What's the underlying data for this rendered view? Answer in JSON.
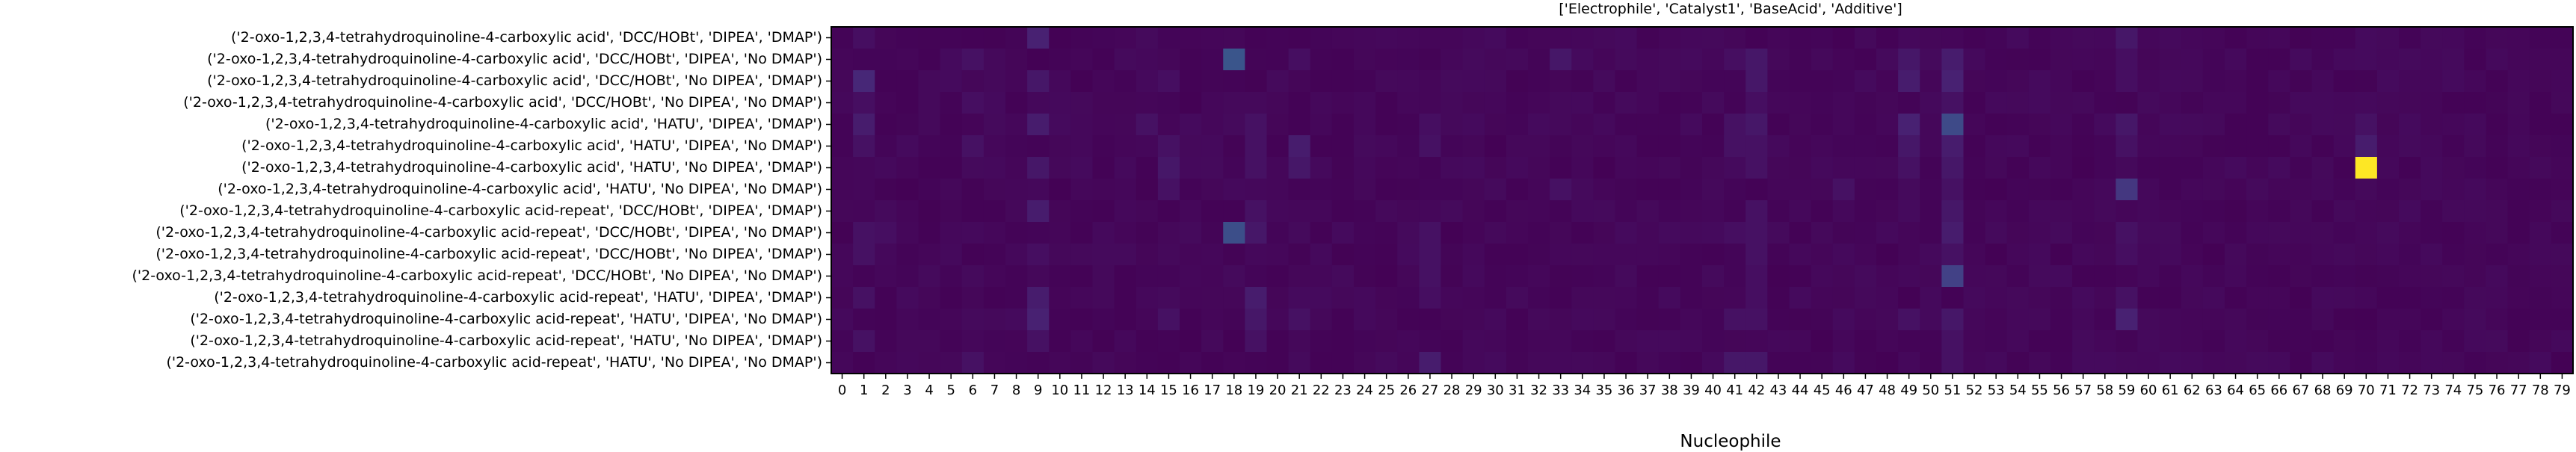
{
  "chart_data": {
    "type": "heatmap",
    "title": "['Electrophile', 'Catalyst1', 'BaseAcid', 'Additive']",
    "xlabel": "Nucleophile",
    "ylabel": "",
    "x_ticks": [
      "0",
      "1",
      "2",
      "3",
      "4",
      "5",
      "6",
      "7",
      "8",
      "9",
      "10",
      "11",
      "12",
      "13",
      "14",
      "15",
      "16",
      "17",
      "18",
      "19",
      "20",
      "21",
      "22",
      "23",
      "24",
      "25",
      "26",
      "27",
      "28",
      "29",
      "30",
      "31",
      "32",
      "33",
      "34",
      "35",
      "36",
      "37",
      "38",
      "39",
      "40",
      "41",
      "42",
      "43",
      "44",
      "45",
      "46",
      "47",
      "48",
      "49",
      "50",
      "51",
      "52",
      "53",
      "54",
      "55",
      "56",
      "57",
      "58",
      "59",
      "60",
      "61",
      "62",
      "63",
      "64",
      "65",
      "66",
      "67",
      "68",
      "69",
      "70",
      "71",
      "72",
      "73",
      "74",
      "75",
      "76",
      "77",
      "78",
      "79"
    ],
    "y_labels": [
      "('2-oxo-1,2,3,4-tetrahydroquinoline-4-carboxylic acid', 'DCC/HOBt', 'DIPEA', 'DMAP')",
      "('2-oxo-1,2,3,4-tetrahydroquinoline-4-carboxylic acid', 'DCC/HOBt', 'DIPEA', 'No DMAP')",
      "('2-oxo-1,2,3,4-tetrahydroquinoline-4-carboxylic acid', 'DCC/HOBt', 'No DIPEA', 'DMAP')",
      "('2-oxo-1,2,3,4-tetrahydroquinoline-4-carboxylic acid', 'DCC/HOBt', 'No DIPEA', 'No DMAP')",
      "('2-oxo-1,2,3,4-tetrahydroquinoline-4-carboxylic acid', 'HATU', 'DIPEA', 'DMAP')",
      "('2-oxo-1,2,3,4-tetrahydroquinoline-4-carboxylic acid', 'HATU', 'DIPEA', 'No DMAP')",
      "('2-oxo-1,2,3,4-tetrahydroquinoline-4-carboxylic acid', 'HATU', 'No DIPEA', 'DMAP')",
      "('2-oxo-1,2,3,4-tetrahydroquinoline-4-carboxylic acid', 'HATU', 'No DIPEA', 'No DMAP')",
      "('2-oxo-1,2,3,4-tetrahydroquinoline-4-carboxylic acid-repeat', 'DCC/HOBt', 'DIPEA', 'DMAP')",
      "('2-oxo-1,2,3,4-tetrahydroquinoline-4-carboxylic acid-repeat', 'DCC/HOBt', 'DIPEA', 'No DMAP')",
      "('2-oxo-1,2,3,4-tetrahydroquinoline-4-carboxylic acid-repeat', 'DCC/HOBt', 'No DIPEA', 'DMAP')",
      "('2-oxo-1,2,3,4-tetrahydroquinoline-4-carboxylic acid-repeat', 'DCC/HOBt', 'No DIPEA', 'No DMAP')",
      "('2-oxo-1,2,3,4-tetrahydroquinoline-4-carboxylic acid-repeat', 'HATU', 'DIPEA', 'DMAP')",
      "('2-oxo-1,2,3,4-tetrahydroquinoline-4-carboxylic acid-repeat', 'HATU', 'DIPEA', 'No DMAP')",
      "('2-oxo-1,2,3,4-tetrahydroquinoline-4-carboxylic acid-repeat', 'HATU', 'No DIPEA', 'DMAP')",
      "('2-oxo-1,2,3,4-tetrahydroquinoline-4-carboxylic acid-repeat', 'HATU', 'No DIPEA', 'No DMAP')"
    ],
    "colormap": "viridis",
    "value_range": [
      0,
      1
    ],
    "grid": false,
    "legend": "none",
    "cells": [
      {
        "row": 0,
        "col": 9,
        "v": 0.12
      },
      {
        "row": 0,
        "col": 1,
        "v": 0.05
      },
      {
        "row": 0,
        "col": 59,
        "v": 0.08
      },
      {
        "row": 1,
        "col": 18,
        "v": 0.33
      },
      {
        "row": 1,
        "col": 6,
        "v": 0.06
      },
      {
        "row": 1,
        "col": 21,
        "v": 0.05
      },
      {
        "row": 1,
        "col": 33,
        "v": 0.08
      },
      {
        "row": 1,
        "col": 41,
        "v": 0.05
      },
      {
        "row": 1,
        "col": 42,
        "v": 0.08
      },
      {
        "row": 1,
        "col": 49,
        "v": 0.08
      },
      {
        "row": 1,
        "col": 51,
        "v": 0.1
      },
      {
        "row": 1,
        "col": 59,
        "v": 0.05
      },
      {
        "row": 2,
        "col": 1,
        "v": 0.14
      },
      {
        "row": 2,
        "col": 9,
        "v": 0.08
      },
      {
        "row": 2,
        "col": 15,
        "v": 0.05
      },
      {
        "row": 2,
        "col": 42,
        "v": 0.08
      },
      {
        "row": 2,
        "col": 49,
        "v": 0.1
      },
      {
        "row": 2,
        "col": 51,
        "v": 0.12
      },
      {
        "row": 2,
        "col": 59,
        "v": 0.05
      },
      {
        "row": 3,
        "col": 1,
        "v": 0.05
      },
      {
        "row": 3,
        "col": 6,
        "v": 0.05
      },
      {
        "row": 3,
        "col": 42,
        "v": 0.05
      },
      {
        "row": 3,
        "col": 51,
        "v": 0.06
      },
      {
        "row": 4,
        "col": 1,
        "v": 0.1
      },
      {
        "row": 4,
        "col": 9,
        "v": 0.1
      },
      {
        "row": 4,
        "col": 14,
        "v": 0.06
      },
      {
        "row": 4,
        "col": 19,
        "v": 0.06
      },
      {
        "row": 4,
        "col": 27,
        "v": 0.05
      },
      {
        "row": 4,
        "col": 41,
        "v": 0.06
      },
      {
        "row": 4,
        "col": 42,
        "v": 0.08
      },
      {
        "row": 4,
        "col": 49,
        "v": 0.12
      },
      {
        "row": 4,
        "col": 51,
        "v": 0.28
      },
      {
        "row": 4,
        "col": 59,
        "v": 0.08
      },
      {
        "row": 4,
        "col": 70,
        "v": 0.06
      },
      {
        "row": 5,
        "col": 1,
        "v": 0.06
      },
      {
        "row": 5,
        "col": 6,
        "v": 0.06
      },
      {
        "row": 5,
        "col": 15,
        "v": 0.06
      },
      {
        "row": 5,
        "col": 19,
        "v": 0.06
      },
      {
        "row": 5,
        "col": 21,
        "v": 0.1
      },
      {
        "row": 5,
        "col": 27,
        "v": 0.06
      },
      {
        "row": 5,
        "col": 41,
        "v": 0.06
      },
      {
        "row": 5,
        "col": 42,
        "v": 0.06
      },
      {
        "row": 5,
        "col": 49,
        "v": 0.08
      },
      {
        "row": 5,
        "col": 51,
        "v": 0.1
      },
      {
        "row": 5,
        "col": 59,
        "v": 0.06
      },
      {
        "row": 5,
        "col": 70,
        "v": 0.1
      },
      {
        "row": 6,
        "col": 9,
        "v": 0.08
      },
      {
        "row": 6,
        "col": 15,
        "v": 0.08
      },
      {
        "row": 6,
        "col": 19,
        "v": 0.06
      },
      {
        "row": 6,
        "col": 21,
        "v": 0.08
      },
      {
        "row": 6,
        "col": 42,
        "v": 0.06
      },
      {
        "row": 6,
        "col": 49,
        "v": 0.06
      },
      {
        "row": 6,
        "col": 51,
        "v": 0.08
      },
      {
        "row": 6,
        "col": 70,
        "v": 1.0
      },
      {
        "row": 7,
        "col": 15,
        "v": 0.06
      },
      {
        "row": 7,
        "col": 33,
        "v": 0.06
      },
      {
        "row": 7,
        "col": 46,
        "v": 0.06
      },
      {
        "row": 7,
        "col": 51,
        "v": 0.06
      },
      {
        "row": 7,
        "col": 59,
        "v": 0.2
      },
      {
        "row": 8,
        "col": 9,
        "v": 0.1
      },
      {
        "row": 8,
        "col": 19,
        "v": 0.06
      },
      {
        "row": 8,
        "col": 42,
        "v": 0.06
      },
      {
        "row": 8,
        "col": 51,
        "v": 0.08
      },
      {
        "row": 9,
        "col": 1,
        "v": 0.06
      },
      {
        "row": 9,
        "col": 2,
        "v": 0.05
      },
      {
        "row": 9,
        "col": 18,
        "v": 0.3
      },
      {
        "row": 9,
        "col": 19,
        "v": 0.08
      },
      {
        "row": 9,
        "col": 27,
        "v": 0.06
      },
      {
        "row": 9,
        "col": 41,
        "v": 0.05
      },
      {
        "row": 9,
        "col": 42,
        "v": 0.06
      },
      {
        "row": 9,
        "col": 51,
        "v": 0.1
      },
      {
        "row": 9,
        "col": 59,
        "v": 0.06
      },
      {
        "row": 10,
        "col": 1,
        "v": 0.06
      },
      {
        "row": 10,
        "col": 9,
        "v": 0.05
      },
      {
        "row": 10,
        "col": 27,
        "v": 0.06
      },
      {
        "row": 10,
        "col": 42,
        "v": 0.06
      },
      {
        "row": 10,
        "col": 51,
        "v": 0.06
      },
      {
        "row": 10,
        "col": 59,
        "v": 0.05
      },
      {
        "row": 11,
        "col": 27,
        "v": 0.06
      },
      {
        "row": 11,
        "col": 42,
        "v": 0.05
      },
      {
        "row": 11,
        "col": 51,
        "v": 0.24
      },
      {
        "row": 12,
        "col": 1,
        "v": 0.06
      },
      {
        "row": 12,
        "col": 9,
        "v": 0.1
      },
      {
        "row": 12,
        "col": 19,
        "v": 0.1
      },
      {
        "row": 12,
        "col": 27,
        "v": 0.05
      },
      {
        "row": 12,
        "col": 42,
        "v": 0.05
      },
      {
        "row": 12,
        "col": 59,
        "v": 0.06
      },
      {
        "row": 13,
        "col": 9,
        "v": 0.12
      },
      {
        "row": 13,
        "col": 15,
        "v": 0.06
      },
      {
        "row": 13,
        "col": 19,
        "v": 0.08
      },
      {
        "row": 13,
        "col": 21,
        "v": 0.06
      },
      {
        "row": 13,
        "col": 41,
        "v": 0.06
      },
      {
        "row": 13,
        "col": 42,
        "v": 0.06
      },
      {
        "row": 13,
        "col": 49,
        "v": 0.06
      },
      {
        "row": 13,
        "col": 51,
        "v": 0.08
      },
      {
        "row": 13,
        "col": 59,
        "v": 0.12
      },
      {
        "row": 14,
        "col": 1,
        "v": 0.06
      },
      {
        "row": 14,
        "col": 9,
        "v": 0.06
      },
      {
        "row": 14,
        "col": 19,
        "v": 0.06
      },
      {
        "row": 14,
        "col": 51,
        "v": 0.06
      },
      {
        "row": 15,
        "col": 6,
        "v": 0.06
      },
      {
        "row": 15,
        "col": 27,
        "v": 0.1
      },
      {
        "row": 15,
        "col": 41,
        "v": 0.08
      },
      {
        "row": 15,
        "col": 42,
        "v": 0.08
      },
      {
        "row": 15,
        "col": 51,
        "v": 0.06
      }
    ]
  }
}
